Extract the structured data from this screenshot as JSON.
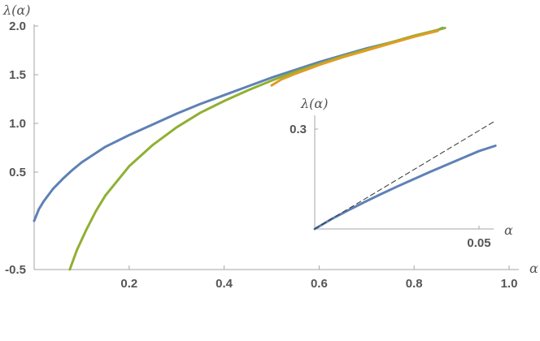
{
  "colors": {
    "axis": "#a6a6a6",
    "text": "#555555",
    "blue": "#5e81b5",
    "green": "#8fb032",
    "orange": "#e19c24",
    "dashed": "#333333"
  },
  "chart_data": [
    {
      "type": "line",
      "title": "",
      "xlabel": "α",
      "ylabel": "λ(α)",
      "xlim": [
        0,
        1.0
      ],
      "ylim": [
        -0.5,
        2.0
      ],
      "x_ticks": [
        0.2,
        0.4,
        0.6,
        0.8,
        1.0
      ],
      "x_tick_labels": [
        "0.2",
        "0.4",
        "0.6",
        "0.8",
        "1.0"
      ],
      "y_ticks": [
        -0.5,
        0.5,
        1.0,
        1.5,
        2.0
      ],
      "y_tick_labels": [
        "-0.5",
        "0.5",
        "1.0",
        "1.5",
        "2.0"
      ],
      "grid": false,
      "series": [
        {
          "color": "blue",
          "x": [
            0,
            0.01,
            0.02,
            0.04,
            0.06,
            0.08,
            0.1,
            0.15,
            0.2,
            0.25,
            0.3,
            0.35,
            0.4,
            0.45,
            0.5,
            0.55,
            0.6,
            0.65,
            0.7,
            0.75,
            0.8,
            0.85,
            0.86
          ],
          "y": [
            0,
            0.12,
            0.2,
            0.33,
            0.43,
            0.52,
            0.6,
            0.76,
            0.88,
            0.99,
            1.1,
            1.2,
            1.29,
            1.38,
            1.47,
            1.55,
            1.63,
            1.7,
            1.77,
            1.83,
            1.89,
            1.96,
            1.98
          ]
        },
        {
          "color": "green",
          "x": [
            0.075,
            0.09,
            0.11,
            0.13,
            0.15,
            0.2,
            0.25,
            0.3,
            0.35,
            0.4,
            0.45,
            0.5,
            0.55,
            0.6,
            0.65,
            0.7,
            0.75,
            0.8,
            0.85,
            0.865
          ],
          "y": [
            -0.5,
            -0.3,
            -0.09,
            0.1,
            0.26,
            0.56,
            0.78,
            0.96,
            1.11,
            1.23,
            1.34,
            1.44,
            1.53,
            1.61,
            1.69,
            1.76,
            1.83,
            1.9,
            1.96,
            1.98
          ]
        },
        {
          "color": "orange",
          "x": [
            0.5,
            0.52,
            0.55,
            0.6,
            0.65,
            0.7,
            0.75,
            0.8,
            0.85
          ],
          "y": [
            1.39,
            1.45,
            1.51,
            1.6,
            1.68,
            1.75,
            1.82,
            1.89,
            1.95
          ]
        }
      ]
    },
    {
      "type": "line",
      "title": "",
      "xlabel": "α",
      "ylabel": "λ(α)",
      "xlim": [
        0,
        0.05
      ],
      "ylim": [
        0,
        0.3
      ],
      "x_ticks": [
        0.05
      ],
      "x_tick_labels": [
        "0.05"
      ],
      "y_ticks": [
        0.3
      ],
      "y_tick_labels": [
        "0.3"
      ],
      "grid": false,
      "series": [
        {
          "color": "blue",
          "x": [
            0,
            0.005,
            0.01,
            0.015,
            0.02,
            0.025,
            0.03,
            0.035,
            0.04,
            0.045,
            0.05,
            0.055
          ],
          "y": [
            0,
            0.029,
            0.055,
            0.08,
            0.104,
            0.127,
            0.149,
            0.171,
            0.192,
            0.213,
            0.234,
            0.25
          ]
        },
        {
          "color": "dashed",
          "dashed": true,
          "x": [
            0,
            0.055
          ],
          "y": [
            0,
            0.325
          ]
        }
      ]
    }
  ]
}
